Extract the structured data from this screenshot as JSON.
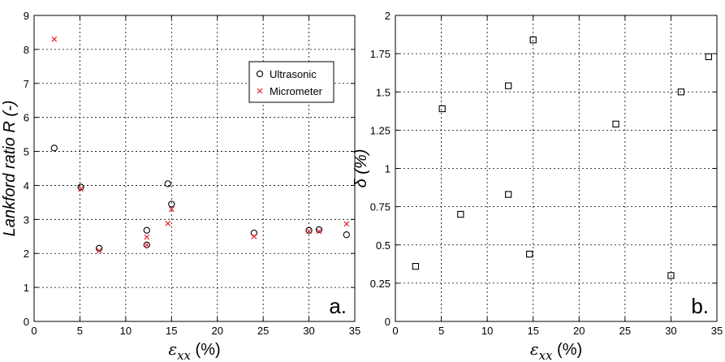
{
  "chart_data": [
    {
      "type": "scatter",
      "panel_label": "a.",
      "xlabel": "εxx (%)",
      "xlabel_parts": {
        "symbol": "ε",
        "sub": "xx",
        "unit": " (%)"
      },
      "ylabel": "Lankford ratio R (-)",
      "xlim": [
        0,
        35
      ],
      "ylim": [
        0,
        9
      ],
      "xticks": [
        "0",
        "5",
        "10",
        "15",
        "20",
        "25",
        "30",
        "35"
      ],
      "yticks": [
        "0",
        "1",
        "2",
        "3",
        "4",
        "5",
        "6",
        "7",
        "8",
        "9"
      ],
      "grid": true,
      "legend_position": "top-right",
      "series": [
        {
          "name": "Ultrasonic",
          "marker": "circle",
          "color": "#000000",
          "x": [
            2.2,
            5.1,
            7.1,
            12.3,
            12.3,
            14.6,
            15.0,
            24.0,
            30.0,
            31.1,
            34.1
          ],
          "y": [
            5.1,
            3.95,
            2.15,
            2.25,
            2.68,
            4.05,
            3.45,
            2.6,
            2.68,
            2.7,
            2.55
          ]
        },
        {
          "name": "Micrometer",
          "marker": "x",
          "color": "#e8202a",
          "x": [
            2.2,
            5.1,
            7.1,
            12.3,
            12.3,
            14.6,
            15.0,
            24.0,
            30.0,
            31.1,
            34.1
          ],
          "y": [
            8.3,
            3.9,
            2.08,
            2.25,
            2.48,
            2.88,
            3.3,
            2.5,
            2.65,
            2.65,
            2.87
          ]
        }
      ]
    },
    {
      "type": "scatter",
      "panel_label": "b.",
      "xlabel": "εxx (%)",
      "xlabel_parts": {
        "symbol": "ε",
        "sub": "xx",
        "unit": " (%)"
      },
      "ylabel": "δ (%)",
      "xlim": [
        0,
        35
      ],
      "ylim": [
        0,
        2
      ],
      "xticks": [
        "0",
        "5",
        "10",
        "15",
        "20",
        "25",
        "30",
        "35"
      ],
      "yticks": [
        "0",
        "0.25",
        "0.5",
        "0.75",
        "1",
        "1.25",
        "1.5",
        "1.75",
        "2"
      ],
      "grid": true,
      "series": [
        {
          "marker": "square",
          "color": "#000000",
          "x": [
            2.2,
            5.1,
            7.1,
            12.3,
            12.3,
            14.6,
            15.0,
            24.0,
            30.0,
            31.1,
            34.1
          ],
          "y": [
            0.36,
            1.39,
            0.7,
            1.54,
            0.83,
            0.44,
            1.84,
            1.29,
            0.3,
            1.5,
            1.73
          ]
        }
      ]
    }
  ]
}
